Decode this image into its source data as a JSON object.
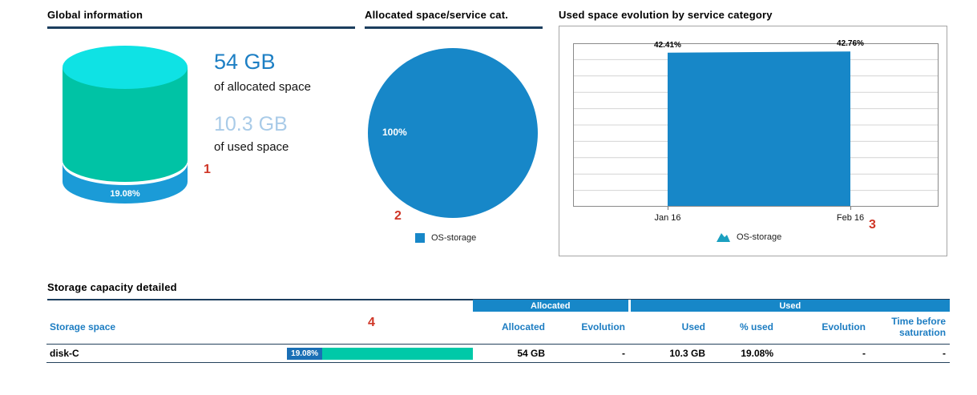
{
  "accent_colors": {
    "blue": "#1787c8",
    "teal": "#00c9a8",
    "cyan": "#0fe2e4",
    "cylinder_blue": "#1b9bd7",
    "light_blue": "#a9cbe8",
    "navy": "#1c3e5e",
    "annotation_red": "#cf3526"
  },
  "panels": {
    "global": {
      "title": "Global information",
      "allocated_value": "54 GB",
      "allocated_label": "of allocated space",
      "used_value": "10.3 GB",
      "used_label": "of used space",
      "cylinder_used_pct": "19.08%"
    },
    "allocated_pie": {
      "title": "Allocated space/service cat.",
      "slice_label": "100%",
      "legend_label": "OS-storage"
    },
    "evolution": {
      "title": "Used space evolution by service category",
      "labels": {
        "left_value": "42.41%",
        "right_value": "42.76%",
        "left_x": "Jan 16",
        "right_x": "Feb 16"
      },
      "legend_label": "OS-storage"
    }
  },
  "detail_table": {
    "title": "Storage capacity detailed",
    "group_headers": [
      "Allocated",
      "Used"
    ],
    "columns": [
      "Storage space",
      "Allocated",
      "Evolution",
      "Used",
      "% used",
      "Evolution",
      "Time before saturation"
    ],
    "rows": [
      {
        "name": "disk-C",
        "bar_label": "19.08%",
        "bar_value": 19.08,
        "allocated": "54 GB",
        "allocated_evolution": "-",
        "used": "10.3 GB",
        "pct_used": "19.08%",
        "used_evolution": "-",
        "time_before_saturation": "-"
      }
    ]
  },
  "annotations": [
    "1",
    "2",
    "3",
    "4"
  ],
  "chart_data": [
    {
      "type": "pie",
      "title": "Allocated space/service cat.",
      "labels": [
        "OS-storage"
      ],
      "values": [
        100
      ],
      "unit": "percent",
      "color": "#1787c8",
      "legend_position": "bottom"
    },
    {
      "type": "area",
      "title": "Used space evolution by service category",
      "x": [
        "Jan 16",
        "Feb 16"
      ],
      "series": [
        {
          "name": "OS-storage",
          "values": [
            42.41,
            42.76
          ]
        }
      ],
      "unit": "percent",
      "ylim": [
        0,
        45
      ],
      "grid": true,
      "legend_position": "bottom",
      "color": "#1787c8"
    },
    {
      "type": "cylinder-gauge",
      "title": "Global information",
      "allocated": "54 GB",
      "used": "10.3 GB",
      "used_pct": 19.08
    }
  ]
}
